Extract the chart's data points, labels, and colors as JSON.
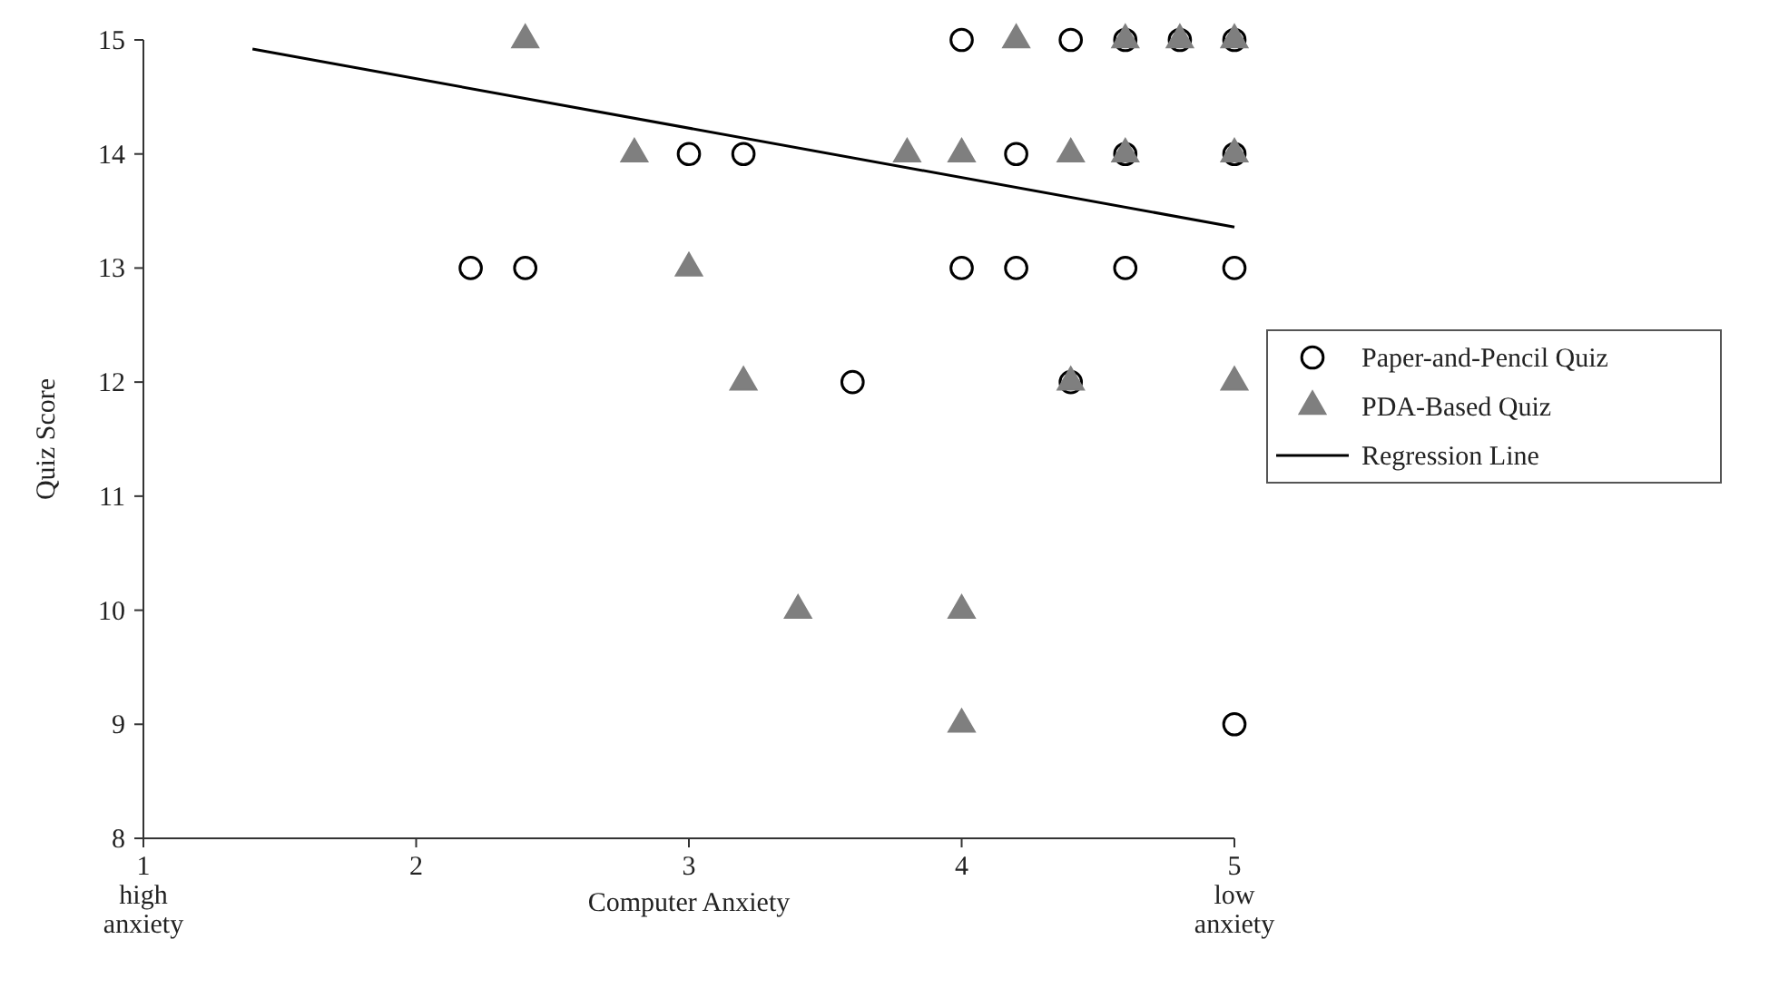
{
  "chart_data": {
    "type": "scatter",
    "xlabel": "Computer Anxiety",
    "ylabel": "Quiz Score",
    "xlim": [
      1,
      5
    ],
    "ylim": [
      8,
      15
    ],
    "xticks": [
      {
        "value": 1,
        "label": "1\nhigh\nanxiety"
      },
      2,
      3,
      4,
      {
        "value": 5,
        "label": "5\nlow\nanxiety"
      }
    ],
    "yticks": [
      8,
      9,
      10,
      11,
      12,
      13,
      14,
      15
    ],
    "grid": false,
    "legend": "right",
    "series": [
      {
        "name": "Paper-and-Pencil Quiz",
        "marker": "circle",
        "color": "#000000",
        "x": [
          2.2,
          2.4,
          3.0,
          3.2,
          3.6,
          4.0,
          4.0,
          4.2,
          4.2,
          4.4,
          4.4,
          4.6,
          4.6,
          4.6,
          4.8,
          5,
          5,
          5,
          5
        ],
        "values": [
          13,
          13,
          14,
          14,
          12,
          15,
          13,
          14,
          13,
          15,
          12,
          15,
          14,
          13,
          15,
          15,
          14,
          13,
          9
        ]
      },
      {
        "name": "PDA-Based Quiz",
        "marker": "triangle",
        "color": "#7f7f7f",
        "x": [
          2.4,
          2.8,
          3.0,
          3.2,
          3.4,
          3.8,
          4.0,
          4.0,
          4.0,
          4.2,
          4.4,
          4.4,
          4.6,
          4.6,
          4.8,
          5,
          5,
          5
        ],
        "values": [
          15,
          14,
          13,
          12,
          10,
          14,
          14,
          10,
          9,
          15,
          14,
          12,
          15,
          14,
          15,
          15,
          14,
          12
        ]
      },
      {
        "name": "Regression Line",
        "type": "line",
        "marker": "none",
        "line_style": "solid",
        "color": "#000000",
        "x": [
          1.4,
          5
        ],
        "values": [
          14.92,
          13.36
        ]
      }
    ]
  }
}
